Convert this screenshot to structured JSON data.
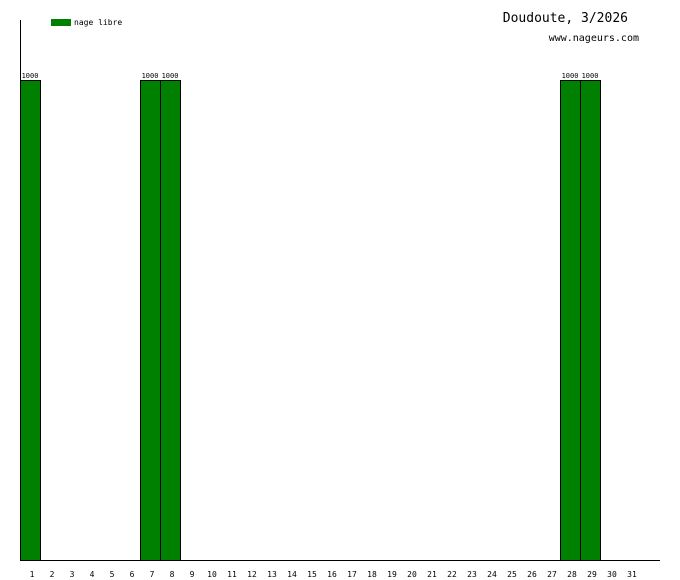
{
  "chart_data": {
    "type": "bar",
    "title": "Doudoute, 3/2026",
    "subtitle": "www.nageurs.com",
    "xlabel": "",
    "ylabel": "",
    "ylim": [
      0,
      1000
    ],
    "categories": [
      "1",
      "2",
      "3",
      "4",
      "5",
      "6",
      "7",
      "8",
      "9",
      "10",
      "11",
      "12",
      "13",
      "14",
      "15",
      "16",
      "17",
      "18",
      "19",
      "20",
      "21",
      "22",
      "23",
      "24",
      "25",
      "26",
      "27",
      "28",
      "29",
      "30",
      "31"
    ],
    "series": [
      {
        "name": "nage libre",
        "color": "#008000",
        "values": [
          1000,
          0,
          0,
          0,
          0,
          0,
          1000,
          1000,
          0,
          0,
          0,
          0,
          0,
          0,
          0,
          0,
          0,
          0,
          0,
          0,
          0,
          0,
          0,
          0,
          0,
          0,
          0,
          1000,
          1000,
          0,
          0
        ]
      }
    ],
    "legend": "top-left",
    "grid": false
  }
}
